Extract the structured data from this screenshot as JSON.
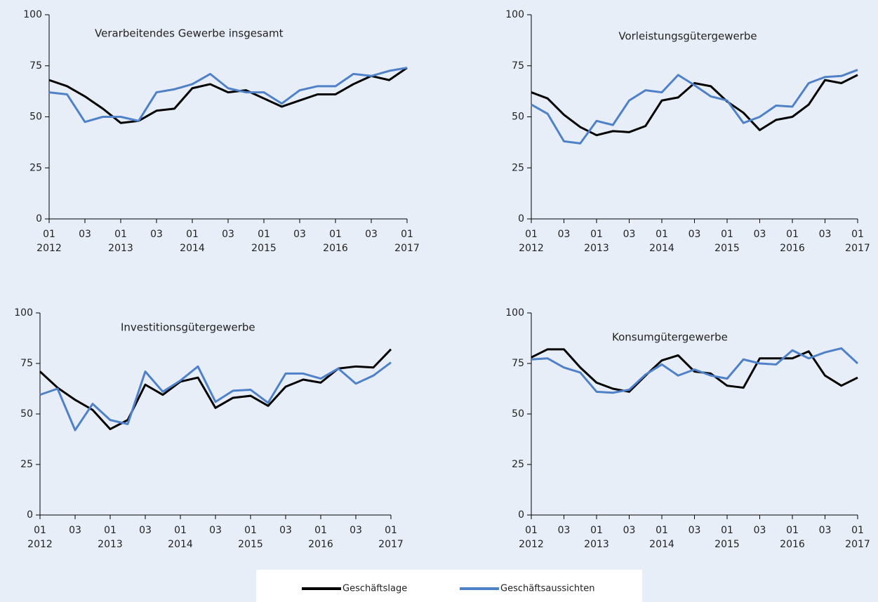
{
  "chart_data": [
    {
      "type": "line",
      "title": "Verarbeitendes Gewerbe insgesamt",
      "categories": [
        "01",
        null,
        "03",
        null,
        "01",
        null,
        "03",
        null,
        "01",
        null,
        "03",
        null,
        "01",
        null,
        "03",
        null,
        "01",
        null,
        "03",
        null,
        "01"
      ],
      "years": [
        "2012",
        null,
        null,
        null,
        "2013",
        null,
        null,
        null,
        "2014",
        null,
        null,
        null,
        "2015",
        null,
        null,
        null,
        "2016",
        null,
        null,
        null,
        "2017"
      ],
      "series": [
        {
          "values": [
            68,
            65,
            60,
            54,
            47,
            48,
            53,
            54,
            64,
            66,
            62,
            63,
            59,
            55,
            58,
            61,
            61,
            66,
            70,
            68,
            74
          ]
        },
        {
          "values": [
            62,
            61,
            47.5,
            50,
            50,
            48,
            62,
            63.5,
            66,
            71,
            64,
            62,
            62,
            56.5,
            63,
            65,
            65,
            71,
            70,
            72.5,
            74
          ]
        }
      ],
      "ylim": [
        0,
        100
      ],
      "yticks": [
        0,
        25,
        50,
        75,
        100
      ]
    },
    {
      "type": "line",
      "title": "Vorleistungsgütergewerbe",
      "categories": [
        "01",
        null,
        "03",
        null,
        "01",
        null,
        "03",
        null,
        "01",
        null,
        "03",
        null,
        "01",
        null,
        "03",
        null,
        "01",
        null,
        "03",
        null,
        "01"
      ],
      "years": [
        "2012",
        null,
        null,
        null,
        "2013",
        null,
        null,
        null,
        "2014",
        null,
        null,
        null,
        "2015",
        null,
        null,
        null,
        "2016",
        null,
        null,
        null,
        "2017"
      ],
      "series": [
        {
          "values": [
            62,
            59,
            51,
            45,
            41,
            43,
            42.5,
            45.5,
            58,
            59.5,
            66.5,
            65,
            57.5,
            52,
            43.5,
            48.5,
            50,
            56,
            68,
            66.5,
            70.5
          ]
        },
        {
          "values": [
            56,
            51.5,
            38,
            37,
            48,
            46,
            58,
            63,
            62,
            70.5,
            65.5,
            60,
            58,
            47,
            50,
            55.5,
            55,
            66.5,
            69.5,
            70,
            73
          ]
        }
      ],
      "ylim": [
        0,
        100
      ],
      "yticks": [
        0,
        25,
        50,
        75,
        100
      ]
    },
    {
      "type": "line",
      "title": "Investitionsgütergewerbe",
      "categories": [
        "01",
        null,
        "03",
        null,
        "01",
        null,
        "03",
        null,
        "01",
        null,
        "03",
        null,
        "01",
        null,
        "03",
        null,
        "01",
        null,
        "03",
        null,
        "01"
      ],
      "years": [
        "2012",
        null,
        null,
        null,
        "2013",
        null,
        null,
        null,
        "2014",
        null,
        null,
        null,
        "2015",
        null,
        null,
        null,
        "2016",
        null,
        null,
        null,
        "2017"
      ],
      "series": [
        {
          "values": [
            71,
            63,
            57,
            52,
            42.5,
            47,
            64.5,
            59.5,
            66,
            68,
            53,
            58,
            59,
            54,
            63.5,
            67,
            65.5,
            72.5,
            73.5,
            73,
            82
          ]
        },
        {
          "values": [
            59.5,
            62.5,
            42,
            55,
            47,
            45,
            71,
            61,
            66.5,
            73.5,
            56,
            61.5,
            62,
            55.5,
            70,
            70,
            67.5,
            72.5,
            65,
            69,
            75.5
          ]
        }
      ],
      "ylim": [
        0,
        100
      ],
      "yticks": [
        0,
        25,
        50,
        75,
        100
      ]
    },
    {
      "type": "line",
      "title": "Konsumgütergewerbe",
      "categories": [
        "01",
        null,
        "03",
        null,
        "01",
        null,
        "03",
        null,
        "01",
        null,
        "03",
        null,
        "01",
        null,
        "03",
        null,
        "01",
        null,
        "03",
        null,
        "01"
      ],
      "years": [
        "2012",
        null,
        null,
        null,
        "2013",
        null,
        null,
        null,
        "2014",
        null,
        null,
        null,
        "2015",
        null,
        null,
        null,
        "2016",
        null,
        null,
        null,
        "2017"
      ],
      "series": [
        {
          "values": [
            78,
            82,
            82,
            73,
            65.5,
            62.5,
            61,
            69,
            76.5,
            79,
            71,
            70,
            64,
            63,
            77.5,
            77.5,
            77.5,
            81,
            69,
            64,
            68
          ]
        },
        {
          "values": [
            77,
            77.5,
            73,
            70.5,
            61,
            60.5,
            62,
            69.5,
            74.5,
            69,
            72,
            69,
            67.5,
            77,
            75,
            74.5,
            81.5,
            77.5,
            80.5,
            82.5,
            75
          ]
        }
      ],
      "ylim": [
        0,
        100
      ],
      "yticks": [
        0,
        25,
        50,
        75,
        100
      ]
    }
  ],
  "legend": [
    {
      "name": "Geschäftslage",
      "color": "#000000"
    },
    {
      "name": "Geschäftsaussichten",
      "color": "#4f81c9"
    }
  ]
}
